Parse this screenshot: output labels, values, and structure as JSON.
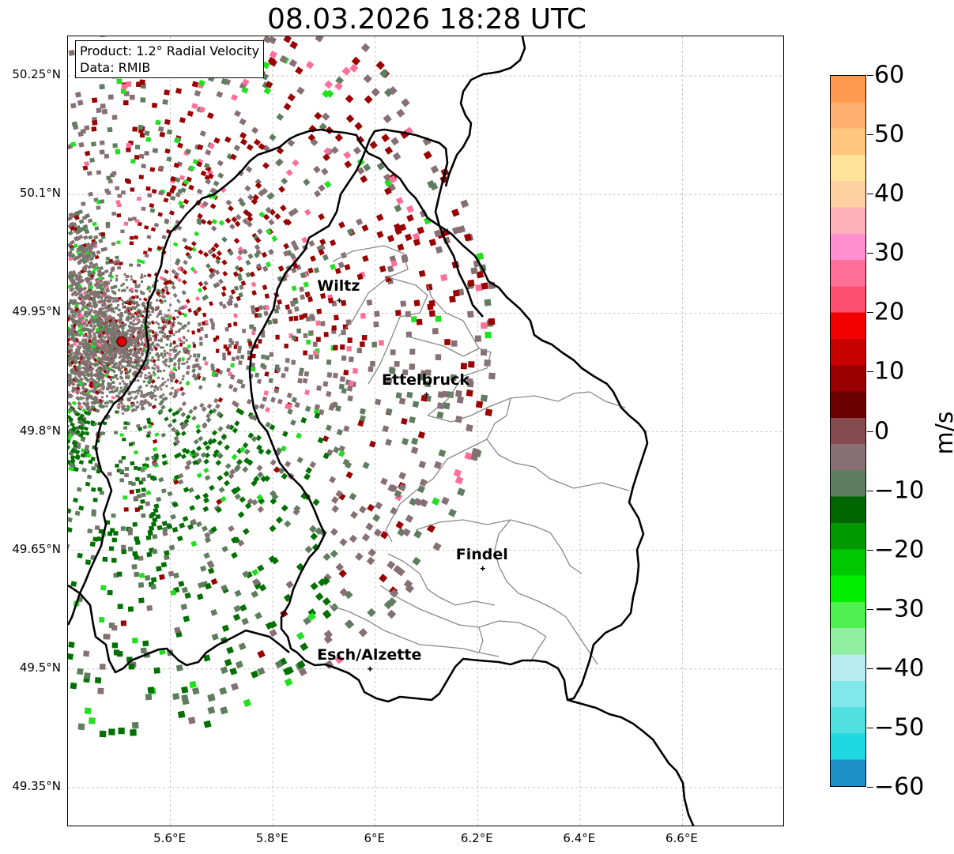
{
  "title": "08.03.2026 18:28 UTC",
  "info": {
    "product": "Product: 1.2° Radial Velocity",
    "data": "Data: RMIB"
  },
  "axes": {
    "y_ticks": [
      "50.25°N",
      "50.1°N",
      "49.95°N",
      "49.8°N",
      "49.65°N",
      "49.5°N",
      "49.35°N"
    ],
    "x_ticks": [
      "5.6°E",
      "5.8°E",
      "6°E",
      "6.2°E",
      "6.4°E",
      "6.6°E"
    ],
    "lon_range": [
      5.4,
      6.8
    ],
    "lat_range": [
      49.3,
      50.3
    ],
    "grid": true
  },
  "cities": [
    {
      "name": "Wiltz",
      "lon": 5.93,
      "lat": 49.966
    },
    {
      "name": "Ettelbruck",
      "lon": 6.1,
      "lat": 49.847
    },
    {
      "name": "Findel",
      "lon": 6.21,
      "lat": 49.627
    },
    {
      "name": "Esch/Alzette",
      "lon": 5.99,
      "lat": 49.5
    }
  ],
  "radar_site": {
    "lon": 5.505,
    "lat": 49.914
  },
  "colorbar": {
    "unit": "m/s",
    "min": -60,
    "max": 60,
    "tick_labels": [
      "60",
      "50",
      "40",
      "30",
      "20",
      "10",
      "0",
      "−10",
      "−20",
      "−30",
      "−40",
      "−50",
      "−60"
    ],
    "colors_top_to_bottom": [
      "#ff9a50",
      "#ffb070",
      "#ffc680",
      "#ffe39a",
      "#ffd0a0",
      "#ffb0b8",
      "#ff8fcf",
      "#ff6f9a",
      "#ff4f6f",
      "#f20000",
      "#c80000",
      "#9a0000",
      "#6a0000",
      "#864b4f",
      "#867073",
      "#5f7d5f",
      "#006600",
      "#009900",
      "#00c800",
      "#00ee00",
      "#50f050",
      "#90f0a0",
      "#b8ecf0",
      "#80e8e8",
      "#50e0e0",
      "#20d8e0",
      "#1e90c8"
    ]
  },
  "velocity_classes": {
    "near_zero_pos": "#867073",
    "near_zero_neg": "#5f7d5f",
    "pos_moderate": "#9a0000",
    "pos_strong": "#ff6f9a",
    "neg_moderate": "#007000",
    "neg_strong": "#20e020"
  }
}
